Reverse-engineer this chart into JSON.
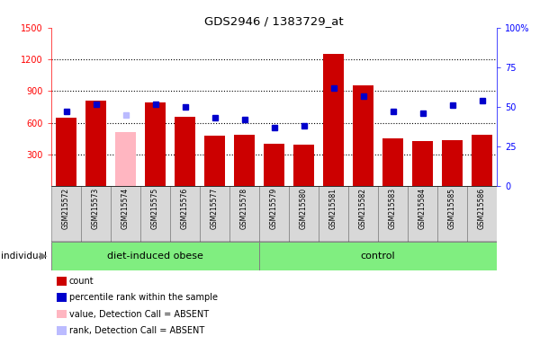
{
  "title": "GDS2946 / 1383729_at",
  "samples": [
    "GSM215572",
    "GSM215573",
    "GSM215574",
    "GSM215575",
    "GSM215576",
    "GSM215577",
    "GSM215578",
    "GSM215579",
    "GSM215580",
    "GSM215581",
    "GSM215582",
    "GSM215583",
    "GSM215584",
    "GSM215585",
    "GSM215586"
  ],
  "counts": [
    650,
    810,
    510,
    790,
    660,
    480,
    490,
    400,
    390,
    1250,
    950,
    450,
    430,
    440,
    490
  ],
  "ranks": [
    47,
    52,
    45,
    52,
    50,
    43,
    42,
    37,
    38,
    62,
    57,
    47,
    46,
    51,
    54
  ],
  "absent_bar_indices": [
    2
  ],
  "absent_rank_indices": [
    2
  ],
  "group_boundaries": [
    7
  ],
  "group_labels": [
    "diet-induced obese",
    "control"
  ],
  "ylim_left": [
    0,
    1500
  ],
  "ylim_right": [
    0,
    100
  ],
  "yticks_left": [
    300,
    600,
    900,
    1200,
    1500
  ],
  "yticks_right": [
    0,
    25,
    50,
    75,
    100
  ],
  "bar_color": "#CC0000",
  "absent_bar_color": "#FFB6C1",
  "rank_color": "#0000CC",
  "absent_rank_color": "#BBBBFF",
  "plot_bg": "#FFFFFF",
  "label_bg": "#D8D8D8",
  "group_color": "#80EE80",
  "legend_items": [
    {
      "color": "#CC0000",
      "type": "rect",
      "label": "count"
    },
    {
      "color": "#0000CC",
      "type": "rect",
      "label": "percentile rank within the sample"
    },
    {
      "color": "#FFB6C1",
      "type": "rect",
      "label": "value, Detection Call = ABSENT"
    },
    {
      "color": "#BBBBFF",
      "type": "rect",
      "label": "rank, Detection Call = ABSENT"
    }
  ]
}
